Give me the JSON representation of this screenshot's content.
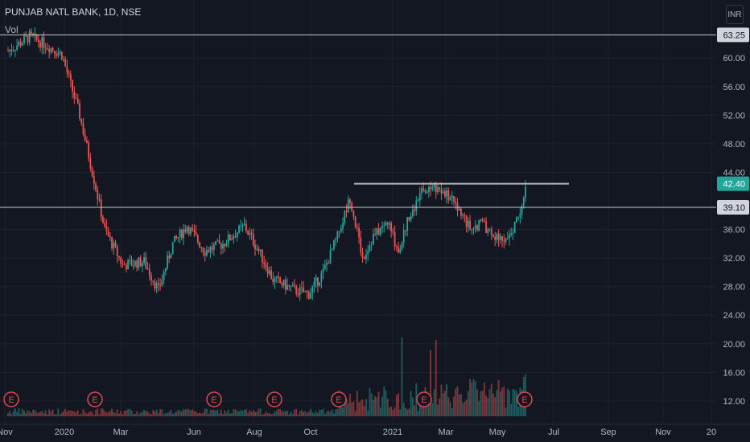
{
  "header": {
    "symbol": "PUNJAB NATL BANK, 1D, NSE",
    "volume_label": "Vol",
    "currency": "INR"
  },
  "chart_data": {
    "type": "candlestick",
    "ylim": [
      8.5,
      67
    ],
    "price_ticks": [
      "60.00",
      "56.00",
      "52.00",
      "48.00",
      "44.00",
      "36.00",
      "32.00",
      "28.00",
      "24.00",
      "20.00",
      "16.00",
      "12.00"
    ],
    "tick_values": [
      60,
      56,
      52,
      48,
      44,
      36,
      32,
      28,
      24,
      20,
      16,
      12
    ],
    "x_labels": [
      "Nov",
      "2020",
      "Mar",
      "Jun",
      "Aug",
      "Oct",
      "2021",
      "Mar",
      "May",
      "Jul",
      "Sep",
      "Nov",
      "20"
    ],
    "horizontal_levels": [
      {
        "label": "63.25",
        "value": 63.25
      },
      {
        "label": "39.10",
        "value": 39.1
      }
    ],
    "last_price": {
      "label": "42.40",
      "value": 42.4
    },
    "trendline": {
      "from": "2020-12",
      "to": "2021-07",
      "value": 42.4
    },
    "earnings_marker": "E",
    "earnings_count": 7,
    "price_path": [
      {
        "m": 0,
        "p": 61
      },
      {
        "m": 0.6,
        "p": 63
      },
      {
        "m": 1.0,
        "p": 62
      },
      {
        "m": 1.5,
        "p": 60.5
      },
      {
        "m": 2.0,
        "p": 52
      },
      {
        "m": 2.4,
        "p": 43
      },
      {
        "m": 2.7,
        "p": 36
      },
      {
        "m": 3.2,
        "p": 31
      },
      {
        "m": 3.8,
        "p": 31.5
      },
      {
        "m": 4.2,
        "p": 27.5
      },
      {
        "m": 4.6,
        "p": 34
      },
      {
        "m": 5.0,
        "p": 36.5
      },
      {
        "m": 5.5,
        "p": 33
      },
      {
        "m": 6.0,
        "p": 34
      },
      {
        "m": 6.6,
        "p": 36.5
      },
      {
        "m": 7.0,
        "p": 33
      },
      {
        "m": 7.4,
        "p": 29
      },
      {
        "m": 8.0,
        "p": 27.5
      },
      {
        "m": 8.4,
        "p": 27
      },
      {
        "m": 8.8,
        "p": 30
      },
      {
        "m": 9.2,
        "p": 35
      },
      {
        "m": 9.55,
        "p": 40.5
      },
      {
        "m": 9.9,
        "p": 32
      },
      {
        "m": 10.2,
        "p": 35
      },
      {
        "m": 10.6,
        "p": 37
      },
      {
        "m": 10.9,
        "p": 33
      },
      {
        "m": 11.2,
        "p": 38
      },
      {
        "m": 11.6,
        "p": 41.5
      },
      {
        "m": 11.9,
        "p": 42
      },
      {
        "m": 12.2,
        "p": 41
      },
      {
        "m": 12.6,
        "p": 39
      },
      {
        "m": 12.9,
        "p": 36
      },
      {
        "m": 13.2,
        "p": 37
      },
      {
        "m": 13.6,
        "p": 34.5
      },
      {
        "m": 14.0,
        "p": 35
      },
      {
        "m": 14.3,
        "p": 38
      },
      {
        "m": 14.5,
        "p": 42.4
      }
    ]
  }
}
